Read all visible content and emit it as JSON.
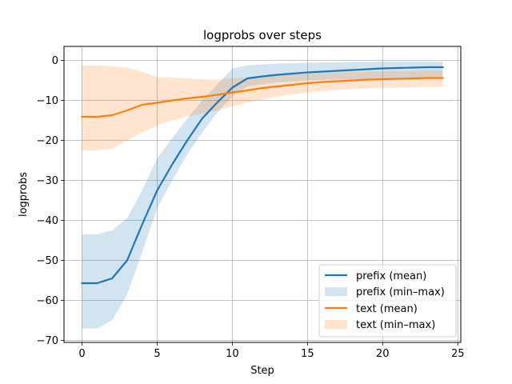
{
  "chart_data": {
    "type": "line",
    "title": "logprobs over steps",
    "xlabel": "Step",
    "ylabel": "logprobs",
    "xlim": [
      -1.2,
      25.2
    ],
    "ylim": [
      -70.5,
      3.5
    ],
    "xticks": [
      0,
      5,
      10,
      15,
      20,
      25
    ],
    "yticks": [
      0,
      -10,
      -20,
      -30,
      -40,
      -50,
      -60,
      -70
    ],
    "grid": true,
    "legend_position": "lower-right",
    "x": [
      0,
      1,
      2,
      3,
      4,
      5,
      6,
      7,
      8,
      9,
      10,
      11,
      12,
      13,
      14,
      15,
      16,
      17,
      18,
      19,
      20,
      21,
      22,
      23,
      24
    ],
    "series": [
      {
        "name": "prefix (mean)",
        "band_name": "prefix (min–max)",
        "color": "#1f77b4",
        "band_color": "#1f77b4",
        "mean": [
          -55.7,
          -55.7,
          -54.5,
          -50.0,
          -41.0,
          -32.5,
          -26.0,
          -20.0,
          -14.5,
          -10.5,
          -6.8,
          -4.5,
          -4.0,
          -3.6,
          -3.3,
          -3.0,
          -2.8,
          -2.6,
          -2.4,
          -2.2,
          -2.0,
          -1.9,
          -1.8,
          -1.7,
          -1.7
        ],
        "min": [
          -67.0,
          -67.0,
          -65.0,
          -58.5,
          -48.0,
          -37.0,
          -30.0,
          -23.5,
          -18.0,
          -13.0,
          -9.0,
          -6.5,
          -6.0,
          -5.5,
          -5.3,
          -5.0,
          -4.9,
          -4.8,
          -4.7,
          -4.6,
          -4.5,
          -4.5,
          -4.4,
          -4.4,
          -4.4
        ],
        "max": [
          -43.5,
          -43.5,
          -42.5,
          -39.5,
          -32.5,
          -24.5,
          -19.5,
          -14.5,
          -10.0,
          -6.0,
          -2.0,
          -1.2,
          -1.0,
          -0.8,
          -0.7,
          -0.6,
          -0.5,
          -0.5,
          -0.4,
          -0.4,
          -0.3,
          -0.3,
          -0.3,
          -0.3,
          -0.3
        ]
      },
      {
        "name": "text (mean)",
        "band_name": "text (min–max)",
        "color": "#ff7f0e",
        "band_color": "#ff7f0e",
        "mean": [
          -14.1,
          -14.1,
          -13.7,
          -12.5,
          -11.1,
          -10.6,
          -10.0,
          -9.5,
          -9.1,
          -8.6,
          -8.0,
          -7.5,
          -6.9,
          -6.5,
          -6.1,
          -5.7,
          -5.4,
          -5.2,
          -5.0,
          -4.8,
          -4.7,
          -4.6,
          -4.5,
          -4.4,
          -4.4
        ],
        "min": [
          -22.5,
          -22.5,
          -22.1,
          -20.0,
          -18.0,
          -16.3,
          -15.0,
          -14.0,
          -13.3,
          -12.6,
          -11.5,
          -10.5,
          -9.8,
          -9.0,
          -8.5,
          -8.0,
          -7.7,
          -7.4,
          -7.2,
          -7.0,
          -6.9,
          -6.8,
          -6.7,
          -6.6,
          -6.6
        ],
        "max": [
          -1.3,
          -1.3,
          -1.4,
          -1.8,
          -2.8,
          -4.2,
          -4.3,
          -4.5,
          -4.7,
          -4.8,
          -4.5,
          -4.3,
          -4.0,
          -3.7,
          -3.5,
          -3.3,
          -3.1,
          -3.0,
          -2.9,
          -2.8,
          -2.7,
          -2.6,
          -2.6,
          -2.5,
          -2.5
        ]
      }
    ]
  }
}
